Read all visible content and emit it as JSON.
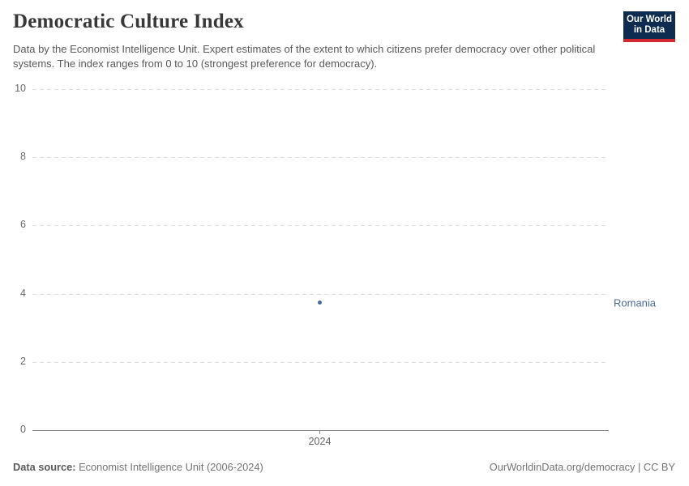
{
  "header": {
    "title": "Democratic Culture Index",
    "subtitle": "Data by the Economist Intelligence Unit. Expert estimates of the extent to which citizens prefer democracy over other political systems. The index ranges from 0 to 10 (strongest preference for democracy)."
  },
  "logo": {
    "line1": "Our World",
    "line2": "in Data",
    "bg_color": "#0d2c4f",
    "accent_color": "#d2282e"
  },
  "chart_data": {
    "type": "scatter",
    "title": "Democratic Culture Index",
    "x": [
      2024
    ],
    "xticks": [
      "2024"
    ],
    "yticks": [
      10,
      8,
      6,
      4,
      2,
      0
    ],
    "ylim": [
      0,
      10
    ],
    "xlabel": "",
    "ylabel": "",
    "grid": "horizontal-dashed",
    "legend_position": "right-entity-label",
    "series": [
      {
        "name": "Romania",
        "x": [
          2024
        ],
        "values": [
          3.75
        ],
        "color": "#4c6a9c"
      }
    ]
  },
  "footer": {
    "source_label": "Data source:",
    "source_value": "Economist Intelligence Unit (2006-2024)",
    "credit": "OurWorldinData.org/democracy | CC BY"
  }
}
